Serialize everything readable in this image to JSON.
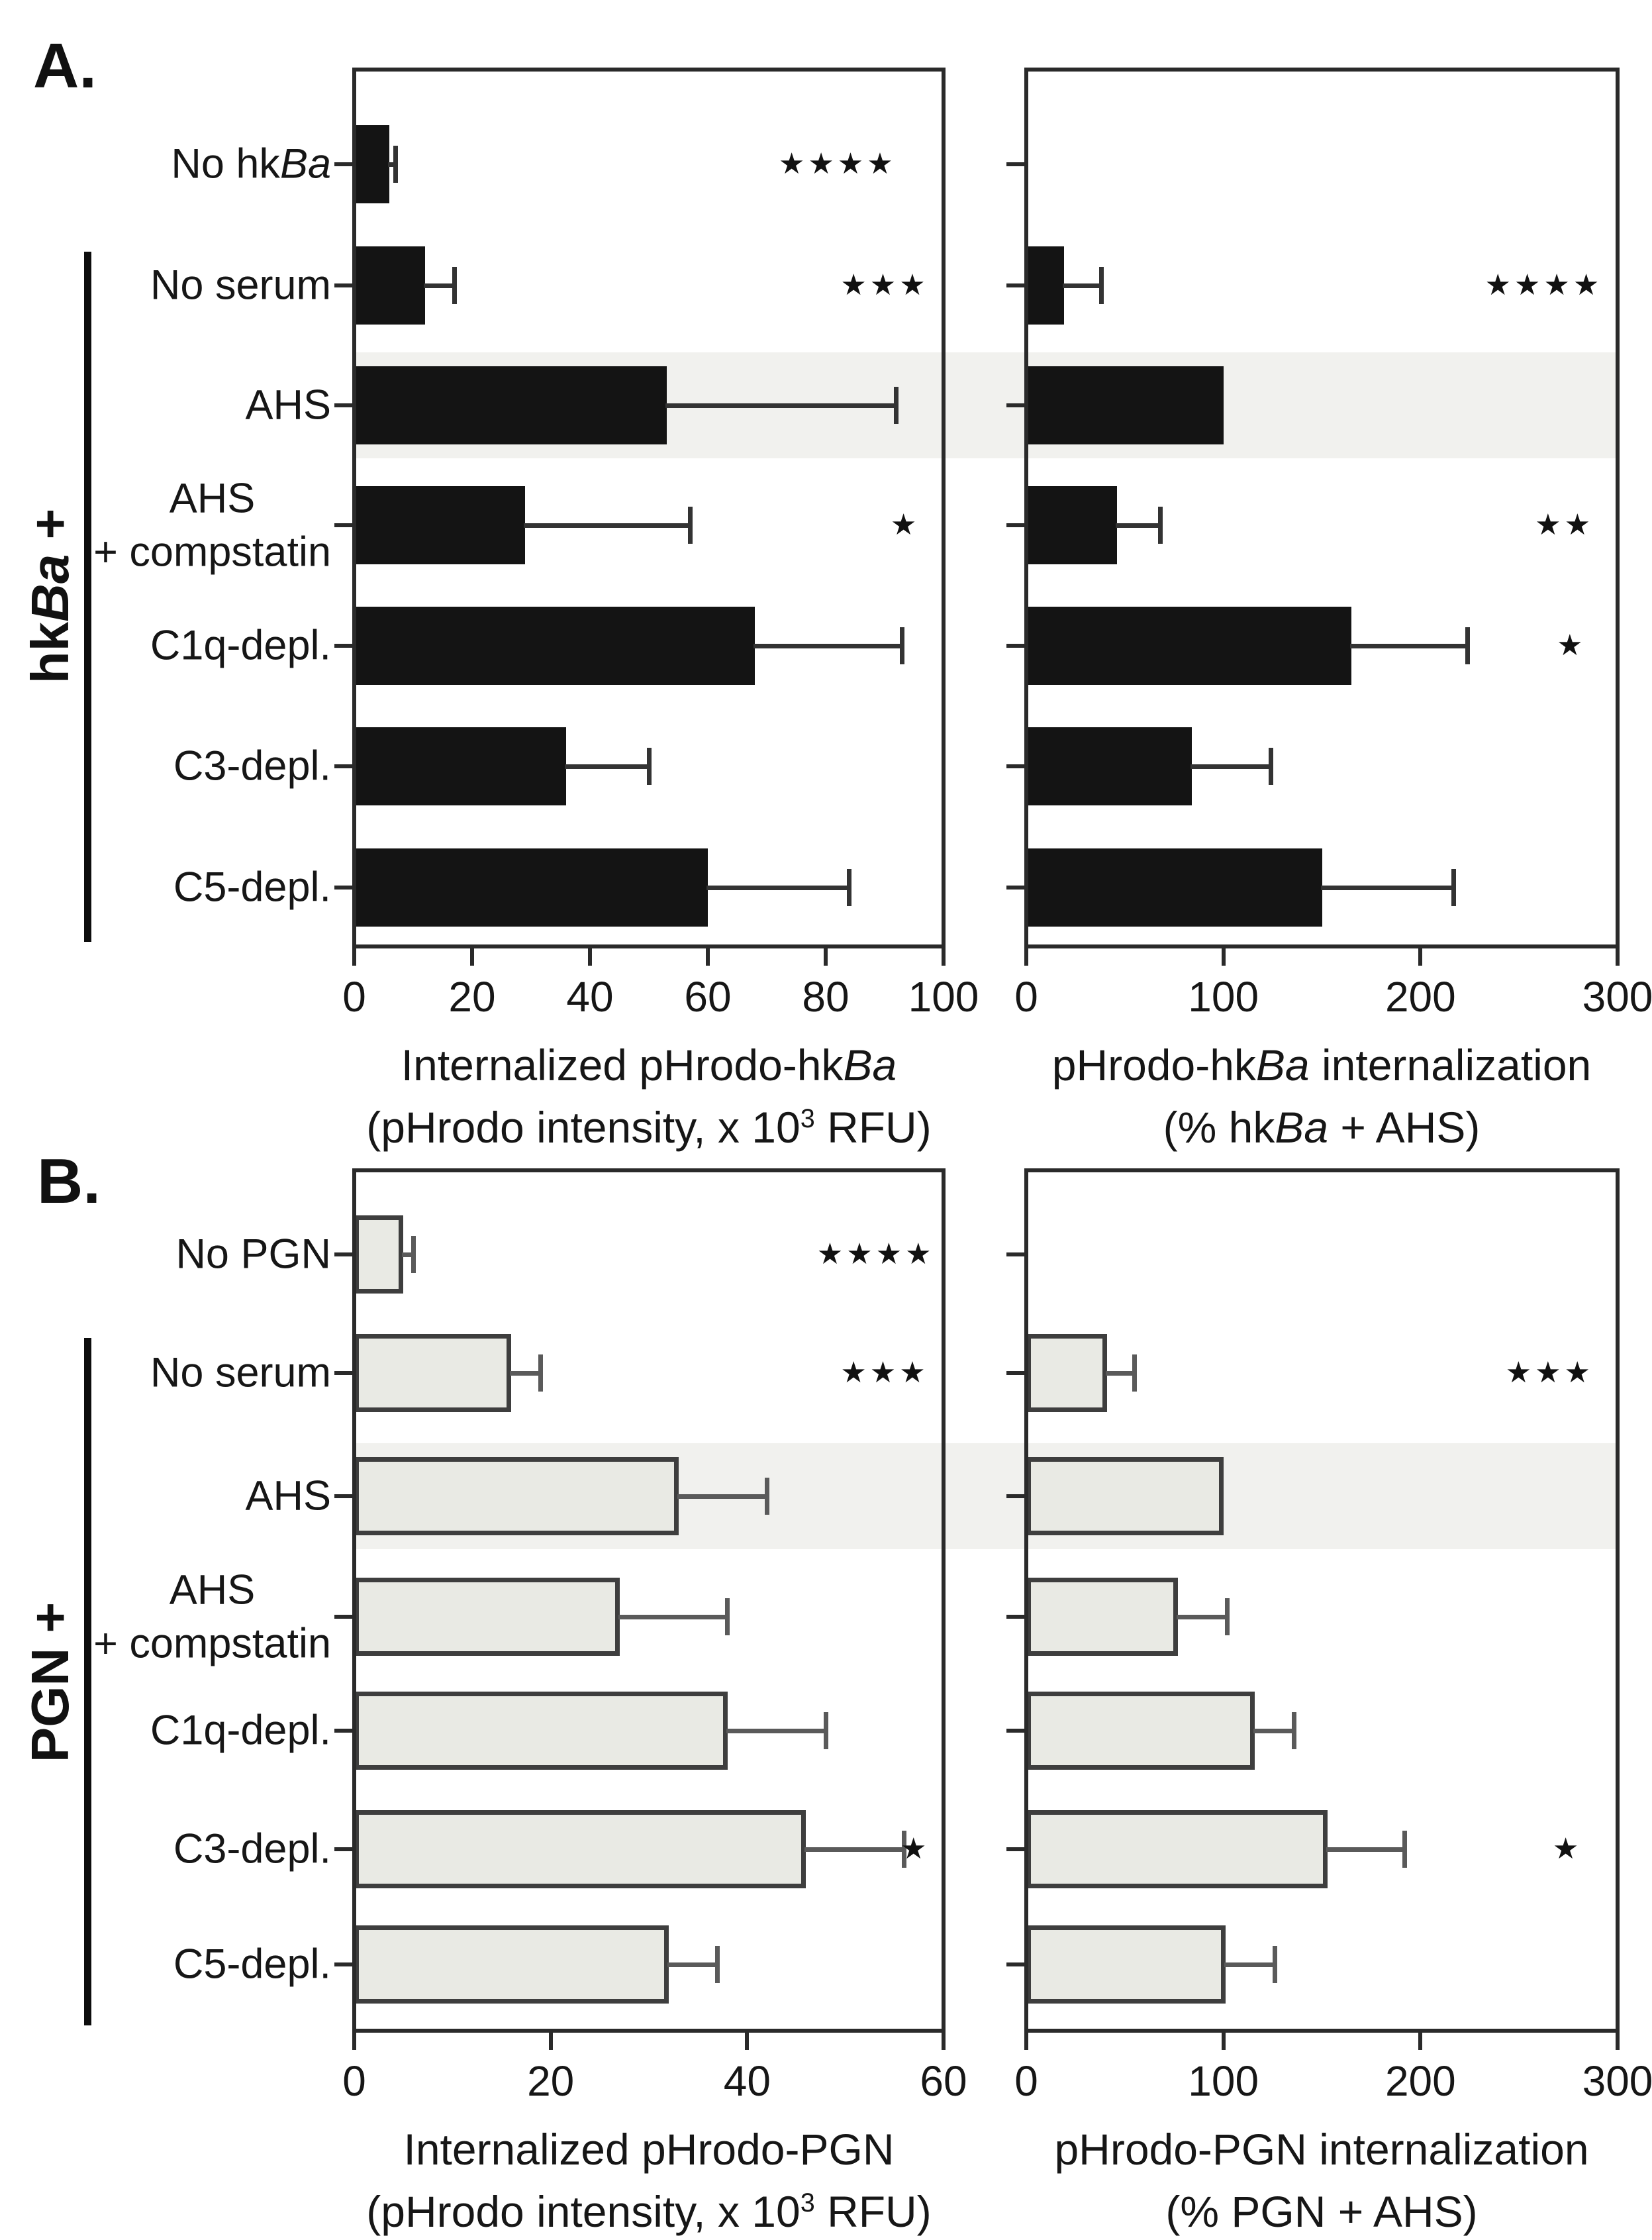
{
  "figure": {
    "panels": [
      {
        "id": "A",
        "letter": "A.",
        "bracket_label": "hk*Ba* +"
      },
      {
        "id": "B",
        "letter": "B.",
        "bracket_label": "PGN +"
      }
    ],
    "highlight_band_color": "#f1f1ee",
    "black_bar_color": "#141414",
    "gray_bar_fill": "#e9eae4",
    "gray_bar_stroke": "#3e3e3e"
  },
  "chart_data": [
    {
      "id": "A-left",
      "type": "bar",
      "orientation": "horizontal",
      "panel": "A",
      "show_category_labels": true,
      "categories": [
        "No hk*Ba*",
        "No serum",
        "AHS",
        "AHS|+ compstatin",
        "C1q-depl.",
        "C3-depl.",
        "C5-depl."
      ],
      "values": [
        6,
        12,
        53,
        29,
        68,
        36,
        60
      ],
      "error_upper": [
        7,
        17,
        92,
        57,
        93,
        50,
        84
      ],
      "xlim": [
        0,
        100
      ],
      "xticks": [
        0,
        20,
        40,
        60,
        80,
        100
      ],
      "xlabel_line1": "Internalized pHrodo-hk*Ba*",
      "xlabel_line2": "(pHrodo intensity, x 10~3~ RFU)",
      "bar_fill": "#141414",
      "bar_stroke": "",
      "err_color": "#333333",
      "highlight_row": 2,
      "significance": [
        {
          "row": 0,
          "stars": "★★★★",
          "x_frac": 0.82
        },
        {
          "row": 1,
          "stars": "★★★",
          "x_frac": 0.9
        },
        {
          "row": 3,
          "stars": "★",
          "x_frac": 0.935
        }
      ]
    },
    {
      "id": "A-right",
      "type": "bar",
      "orientation": "horizontal",
      "panel": "A",
      "show_category_labels": false,
      "categories": [
        "No hk*Ba*",
        "No serum",
        "AHS",
        "AHS|+ compstatin",
        "C1q-depl.",
        "C3-depl.",
        "C5-depl."
      ],
      "values": [
        0,
        19,
        100,
        46,
        165,
        84,
        150
      ],
      "error_upper": [
        null,
        38,
        null,
        68,
        224,
        124,
        217
      ],
      "xlim": [
        0,
        300
      ],
      "xticks": [
        0,
        100,
        200,
        300
      ],
      "xlabel_line1": "pHrodo-hk*Ba* internalization",
      "xlabel_line2": "(% hk*Ba* + AHS)",
      "bar_fill": "#141414",
      "bar_stroke": "",
      "err_color": "#333333",
      "highlight_row": 2,
      "significance": [
        {
          "row": 1,
          "stars": "★★★★",
          "x_frac": 0.875
        },
        {
          "row": 3,
          "stars": "★★",
          "x_frac": 0.91
        },
        {
          "row": 4,
          "stars": "★",
          "x_frac": 0.922
        }
      ]
    },
    {
      "id": "B-left",
      "type": "bar",
      "orientation": "horizontal",
      "panel": "B",
      "show_category_labels": true,
      "categories": [
        "No PGN",
        "No serum",
        "AHS",
        "AHS|+ compstatin",
        "C1q-depl.",
        "C3-depl.",
        "C5-depl."
      ],
      "values": [
        5,
        16,
        33,
        27,
        38,
        46,
        32
      ],
      "error_upper": [
        6,
        19,
        42,
        38,
        48,
        56,
        37
      ],
      "xlim": [
        0,
        60
      ],
      "xticks": [
        0,
        20,
        40,
        60
      ],
      "xlabel_line1": "Internalized pHrodo-PGN",
      "xlabel_line2": "(pHrodo intensity, x 10~3~ RFU)",
      "bar_fill": "#e9eae4",
      "bar_stroke": "#3e3e3e",
      "err_color": "#5a5a5a",
      "highlight_row": 2,
      "significance": [
        {
          "row": 0,
          "stars": "★★★★",
          "x_frac": 0.885
        },
        {
          "row": 1,
          "stars": "★★★",
          "x_frac": 0.9
        },
        {
          "row": 5,
          "stars": "★",
          "x_frac": 0.952
        }
      ]
    },
    {
      "id": "B-right",
      "type": "bar",
      "orientation": "horizontal",
      "panel": "B",
      "show_category_labels": false,
      "categories": [
        "No PGN",
        "No serum",
        "AHS",
        "AHS|+ compstatin",
        "C1q-depl.",
        "C3-depl.",
        "C5-depl."
      ],
      "values": [
        0,
        41,
        100,
        77,
        116,
        153,
        101
      ],
      "error_upper": [
        null,
        55,
        null,
        102,
        136,
        192,
        126
      ],
      "xlim": [
        0,
        300
      ],
      "xticks": [
        0,
        100,
        200,
        300
      ],
      "xlabel_line1": "pHrodo-PGN internalization",
      "xlabel_line2": "(% PGN + AHS)",
      "bar_fill": "#e9eae4",
      "bar_stroke": "#3e3e3e",
      "err_color": "#5a5a5a",
      "highlight_row": 2,
      "significance": [
        {
          "row": 1,
          "stars": "★★★",
          "x_frac": 0.885
        },
        {
          "row": 5,
          "stars": "★",
          "x_frac": 0.915
        }
      ]
    }
  ]
}
